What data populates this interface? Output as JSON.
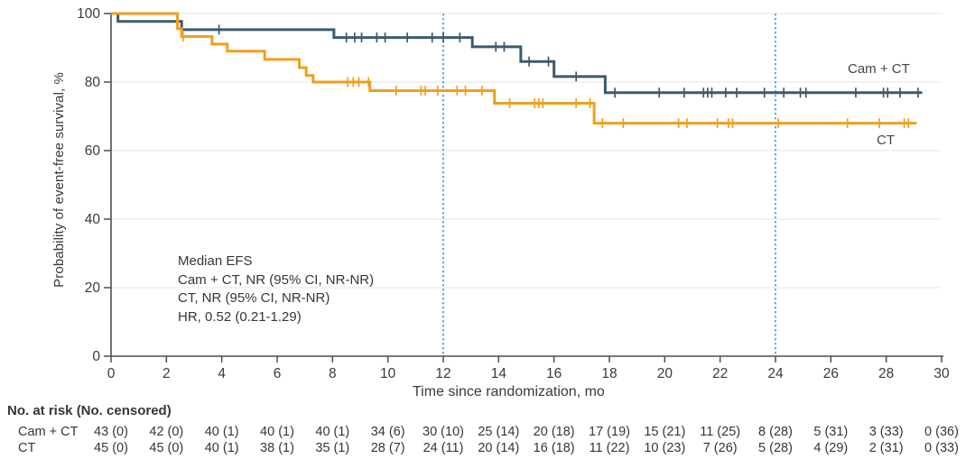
{
  "chart_data": {
    "type": "line",
    "subtype": "kaplan-meier-step-survival",
    "title": "",
    "xlabel": "Time since randomization, mo",
    "ylabel": "Probability of event-free survival, %",
    "xlim": [
      0,
      30
    ],
    "ylim": [
      0,
      100
    ],
    "x_ticks": [
      0,
      2,
      4,
      6,
      8,
      10,
      12,
      14,
      16,
      18,
      20,
      22,
      24,
      26,
      28,
      30
    ],
    "y_ticks": [
      0,
      20,
      40,
      60,
      80,
      100
    ],
    "y_gridlines": [
      20,
      40,
      60,
      80,
      100
    ],
    "grid_on": true,
    "reference_lines_x": [
      12,
      24
    ],
    "colors": {
      "reference_line": "#44aadd",
      "grid": "#ebebeb",
      "axis": "#4f4f4f",
      "text": "#3a3a3a"
    },
    "series": [
      {
        "name": "Cam + CT",
        "label": "Cam + CT",
        "color": "#3e5a6d",
        "steps": [
          [
            0,
            100
          ],
          [
            0.25,
            97.7
          ],
          [
            2.55,
            95.3
          ],
          [
            8.05,
            93.0
          ],
          [
            13.05,
            90.3
          ],
          [
            14.8,
            86.0
          ],
          [
            16.0,
            81.6
          ],
          [
            17.85,
            76.9
          ]
        ],
        "end_time": 29.3,
        "censor_marks": [
          [
            3.9,
            95.3
          ],
          [
            8.5,
            93.0
          ],
          [
            8.8,
            93.0
          ],
          [
            9.05,
            93.0
          ],
          [
            9.6,
            93.0
          ],
          [
            9.9,
            93.0
          ],
          [
            10.7,
            93.0
          ],
          [
            11.6,
            93.0
          ],
          [
            12.0,
            93.0
          ],
          [
            12.6,
            93.0
          ],
          [
            13.9,
            90.3
          ],
          [
            14.2,
            90.3
          ],
          [
            15.1,
            86.0
          ],
          [
            15.8,
            86.0
          ],
          [
            16.8,
            81.6
          ],
          [
            18.2,
            76.9
          ],
          [
            19.8,
            76.9
          ],
          [
            20.7,
            76.9
          ],
          [
            21.4,
            76.9
          ],
          [
            21.55,
            76.9
          ],
          [
            21.7,
            76.9
          ],
          [
            22.2,
            76.9
          ],
          [
            22.6,
            76.9
          ],
          [
            23.6,
            76.9
          ],
          [
            24.3,
            76.9
          ],
          [
            24.9,
            76.9
          ],
          [
            25.1,
            76.9
          ],
          [
            26.9,
            76.9
          ],
          [
            27.9,
            76.9
          ],
          [
            28.05,
            76.9
          ],
          [
            28.5,
            76.9
          ],
          [
            29.15,
            76.9
          ]
        ]
      },
      {
        "name": "CT",
        "label": "CT",
        "color": "#efa01e",
        "steps": [
          [
            0,
            100
          ],
          [
            2.4,
            95.6
          ],
          [
            2.55,
            93.3
          ],
          [
            3.65,
            91.1
          ],
          [
            4.2,
            89.0
          ],
          [
            5.55,
            86.6
          ],
          [
            6.8,
            84.2
          ],
          [
            7.05,
            81.9
          ],
          [
            7.3,
            80.0
          ],
          [
            9.35,
            77.5
          ],
          [
            13.85,
            73.8
          ],
          [
            17.45,
            68.0
          ]
        ],
        "end_time": 29.1,
        "censor_marks": [
          [
            2.6,
            93.3
          ],
          [
            8.55,
            80.0
          ],
          [
            8.75,
            80.0
          ],
          [
            8.95,
            80.0
          ],
          [
            9.3,
            80.0
          ],
          [
            10.3,
            77.5
          ],
          [
            11.2,
            77.5
          ],
          [
            11.35,
            77.5
          ],
          [
            11.8,
            77.5
          ],
          [
            12.5,
            77.5
          ],
          [
            12.8,
            77.5
          ],
          [
            13.4,
            77.5
          ],
          [
            14.4,
            73.8
          ],
          [
            15.3,
            73.8
          ],
          [
            15.45,
            73.8
          ],
          [
            15.6,
            73.8
          ],
          [
            16.8,
            73.8
          ],
          [
            17.3,
            73.8
          ],
          [
            17.75,
            68.0
          ],
          [
            18.5,
            68.0
          ],
          [
            20.5,
            68.0
          ],
          [
            20.8,
            68.0
          ],
          [
            21.9,
            68.0
          ],
          [
            22.3,
            68.0
          ],
          [
            22.45,
            68.0
          ],
          [
            24.1,
            68.0
          ],
          [
            26.6,
            68.0
          ],
          [
            27.75,
            68.0
          ],
          [
            28.65,
            68.0
          ],
          [
            28.8,
            68.0
          ]
        ]
      }
    ],
    "annotation": {
      "lines": [
        "Median EFS",
        "Cam + CT, NR (95% CI, NR-NR)",
        "CT, NR (95% CI, NR-NR)",
        "HR, 0.52 (0.21-1.29)"
      ]
    },
    "risk_table": {
      "header": "No. at risk (No. censored)",
      "times": [
        0,
        2,
        4,
        6,
        8,
        10,
        12,
        14,
        16,
        18,
        20,
        22,
        24,
        26,
        28,
        30
      ],
      "rows": [
        {
          "label": "Cam + CT",
          "values": [
            "43 (0)",
            "42 (0)",
            "40 (1)",
            "40 (1)",
            "40 (1)",
            "34 (6)",
            "30 (10)",
            "25 (14)",
            "20 (18)",
            "17 (19)",
            "15 (21)",
            "11 (25)",
            "8 (28)",
            "5 (31)",
            "3 (33)",
            "0 (36)"
          ]
        },
        {
          "label": "CT",
          "values": [
            "45 (0)",
            "45 (0)",
            "40 (1)",
            "38 (1)",
            "35 (1)",
            "28 (7)",
            "24 (11)",
            "20 (14)",
            "16 (18)",
            "11 (22)",
            "10 (23)",
            "7 (26)",
            "5 (28)",
            "4 (29)",
            "2 (31)",
            "0 (33)"
          ]
        }
      ]
    }
  }
}
